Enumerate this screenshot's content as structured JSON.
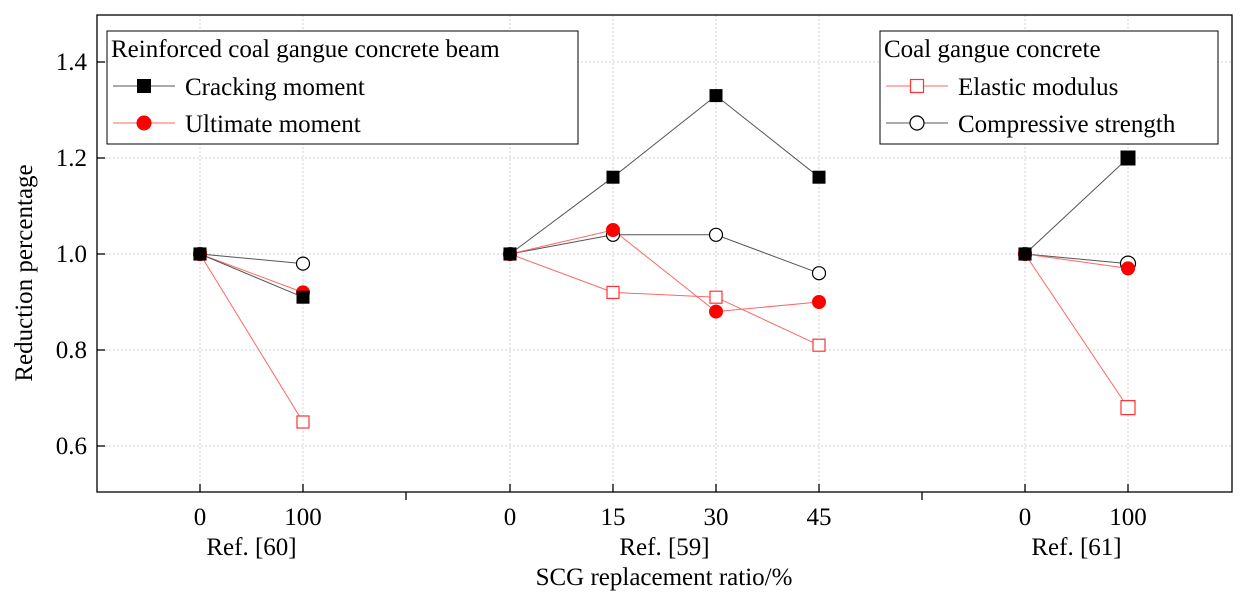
{
  "chart_data": {
    "type": "line",
    "xlabel": "SCG replacement ratio/%",
    "ylabel": "Reduction percentage",
    "ylim": [
      0.5,
      1.5
    ],
    "yticks": [
      "0.6",
      "0.8",
      "1.0",
      "1.2",
      "1.4"
    ],
    "grid": true,
    "groups": [
      {
        "name": "Ref. [60]",
        "ticks": [
          "0",
          "100"
        ],
        "series": {
          "cracking": [
            1.0,
            0.91
          ],
          "ultimate": [
            1.0,
            0.92
          ],
          "elastic": [
            1.0,
            0.65
          ],
          "compressive": [
            1.0,
            0.98
          ]
        }
      },
      {
        "name": "Ref. [59]",
        "ticks": [
          "0",
          "15",
          "30",
          "45"
        ],
        "series": {
          "cracking": [
            1.0,
            1.16,
            1.33,
            1.16
          ],
          "ultimate": [
            1.0,
            1.05,
            0.88,
            0.9
          ],
          "elastic": [
            1.0,
            0.92,
            0.91,
            0.81
          ],
          "compressive": [
            1.0,
            1.04,
            1.04,
            0.96
          ]
        }
      },
      {
        "name": "Ref. [61]",
        "ticks": [
          "0",
          "100"
        ],
        "series": {
          "cracking": [
            1.0,
            1.2
          ],
          "ultimate": [
            1.0,
            0.97
          ],
          "elastic": [
            1.0,
            0.68
          ],
          "compressive": [
            1.0,
            0.98
          ]
        }
      }
    ],
    "series_styles": {
      "cracking": {
        "color": "#000000",
        "line": "#555555",
        "marker": "filled-square"
      },
      "ultimate": {
        "color": "#ff0000",
        "line": "#ff6666",
        "marker": "filled-circle"
      },
      "elastic": {
        "color": "#ff3333",
        "line": "#ff6666",
        "marker": "hollow-square"
      },
      "compressive": {
        "color": "#000000",
        "line": "#555555",
        "marker": "hollow-circle"
      }
    },
    "legends": [
      {
        "position": "top-left",
        "title": "Reinforced coal gangue concrete beam",
        "entries": [
          {
            "key": "cracking",
            "label": "Cracking moment"
          },
          {
            "key": "ultimate",
            "label": "Ultimate moment"
          }
        ]
      },
      {
        "position": "top-right",
        "title": "Coal gangue concrete",
        "entries": [
          {
            "key": "elastic",
            "label": "Elastic modulus"
          },
          {
            "key": "compressive",
            "label": "Compressive strength"
          }
        ]
      }
    ]
  }
}
